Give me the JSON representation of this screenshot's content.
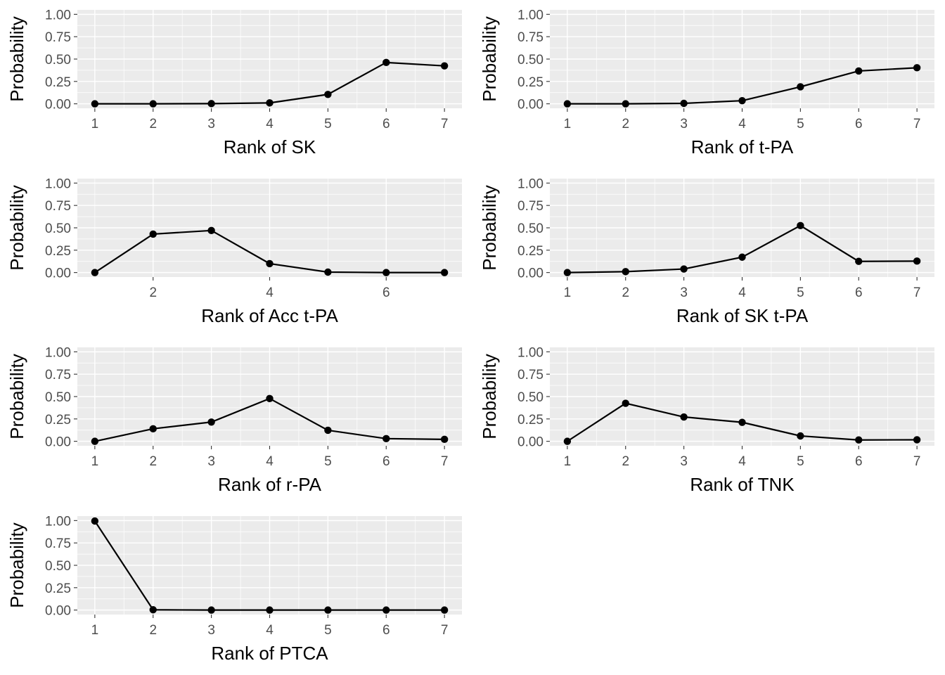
{
  "chart_data": [
    {
      "type": "line",
      "title": "",
      "xlabel": "Rank of SK",
      "ylabel": "Probability",
      "x": [
        1,
        2,
        3,
        4,
        5,
        6,
        7
      ],
      "x_ticks": [
        1,
        2,
        3,
        4,
        5,
        6,
        7
      ],
      "y_ticks": [
        "0.00",
        "0.25",
        "0.50",
        "0.75",
        "1.00"
      ],
      "ylim": [
        0,
        1
      ],
      "grid": true,
      "series": [
        {
          "values": [
            0.0,
            0.0,
            0.002,
            0.01,
            0.105,
            0.462,
            0.424
          ]
        }
      ]
    },
    {
      "type": "line",
      "title": "",
      "xlabel": "Rank of t-PA",
      "ylabel": "Probability",
      "x": [
        1,
        2,
        3,
        4,
        5,
        6,
        7
      ],
      "x_ticks": [
        1,
        2,
        3,
        4,
        5,
        6,
        7
      ],
      "y_ticks": [
        "0.00",
        "0.25",
        "0.50",
        "0.75",
        "1.00"
      ],
      "ylim": [
        0,
        1
      ],
      "grid": true,
      "series": [
        {
          "values": [
            0.0,
            0.0,
            0.005,
            0.035,
            0.19,
            0.367,
            0.403
          ]
        }
      ]
    },
    {
      "type": "line",
      "title": "",
      "xlabel": "Rank of Acc t-PA",
      "ylabel": "Probability",
      "x": [
        1,
        2,
        3,
        4,
        5,
        6,
        7
      ],
      "x_ticks": [
        2,
        4,
        6
      ],
      "y_ticks": [
        "0.00",
        "0.25",
        "0.50",
        "0.75",
        "1.00"
      ],
      "ylim": [
        0,
        1
      ],
      "grid": true,
      "series": [
        {
          "values": [
            0.0,
            0.43,
            0.47,
            0.1,
            0.005,
            0.0,
            0.0
          ]
        }
      ]
    },
    {
      "type": "line",
      "title": "",
      "xlabel": "Rank of SK t-PA",
      "ylabel": "Probability",
      "x": [
        1,
        2,
        3,
        4,
        5,
        6,
        7
      ],
      "x_ticks": [
        1,
        2,
        3,
        4,
        5,
        6,
        7
      ],
      "y_ticks": [
        "0.00",
        "0.25",
        "0.50",
        "0.75",
        "1.00"
      ],
      "ylim": [
        0,
        1
      ],
      "grid": true,
      "series": [
        {
          "values": [
            0.0,
            0.01,
            0.04,
            0.172,
            0.525,
            0.125,
            0.128
          ]
        }
      ]
    },
    {
      "type": "line",
      "title": "",
      "xlabel": "Rank of r-PA",
      "ylabel": "Probability",
      "x": [
        1,
        2,
        3,
        4,
        5,
        6,
        7
      ],
      "x_ticks": [
        1,
        2,
        3,
        4,
        5,
        6,
        7
      ],
      "y_ticks": [
        "0.00",
        "0.25",
        "0.50",
        "0.75",
        "1.00"
      ],
      "ylim": [
        0,
        1
      ],
      "grid": true,
      "series": [
        {
          "values": [
            0.0,
            0.14,
            0.215,
            0.478,
            0.123,
            0.03,
            0.022
          ]
        }
      ]
    },
    {
      "type": "line",
      "title": "",
      "xlabel": "Rank of TNK",
      "ylabel": "Probability",
      "x": [
        1,
        2,
        3,
        4,
        5,
        6,
        7
      ],
      "x_ticks": [
        1,
        2,
        3,
        4,
        5,
        6,
        7
      ],
      "y_ticks": [
        "0.00",
        "0.25",
        "0.50",
        "0.75",
        "1.00"
      ],
      "ylim": [
        0,
        1
      ],
      "grid": true,
      "series": [
        {
          "values": [
            0.0,
            0.425,
            0.272,
            0.212,
            0.06,
            0.015,
            0.017
          ]
        }
      ]
    },
    {
      "type": "line",
      "title": "",
      "xlabel": "Rank of PTCA",
      "ylabel": "Probability",
      "x": [
        1,
        2,
        3,
        4,
        5,
        6,
        7
      ],
      "x_ticks": [
        1,
        2,
        3,
        4,
        5,
        6,
        7
      ],
      "y_ticks": [
        "0.00",
        "0.25",
        "0.50",
        "0.75",
        "1.00"
      ],
      "ylim": [
        0,
        1
      ],
      "grid": true,
      "series": [
        {
          "values": [
            0.995,
            0.003,
            0.0,
            0.0,
            0.0,
            0.0,
            0.0
          ]
        }
      ]
    }
  ]
}
